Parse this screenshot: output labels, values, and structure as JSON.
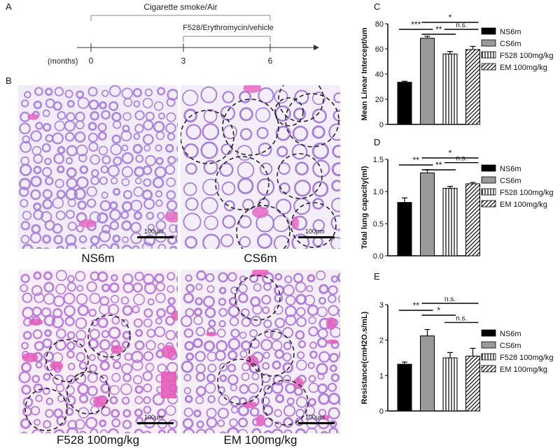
{
  "panel_labels": {
    "a": "A",
    "b": "B",
    "c": "C",
    "d": "D",
    "e": "E"
  },
  "timeline": {
    "bracket1_label": "Cigarette smoke/Air",
    "bracket2_label": "F528/Erythromycin/vehicle",
    "axis_label": "(months)",
    "ticks": [
      "0",
      "3",
      "6"
    ]
  },
  "micrographs": [
    {
      "caption": "NS6m",
      "scale": "100μm",
      "base_color": "#f1ecf8",
      "stain_color": "#a77ed6",
      "blob_color": "#e668c2"
    },
    {
      "caption": "CS6m",
      "scale": "100μm",
      "base_color": "#f3eef9",
      "stain_color": "#9e72d3",
      "blob_color": "#e46ac4"
    },
    {
      "caption": "F528 100mg/kg",
      "scale": "100μm",
      "base_color": "#f7eef8",
      "stain_color": "#b576d6",
      "blob_color": "#e45ab8"
    },
    {
      "caption": "EM 100mg/kg",
      "scale": "100μm",
      "base_color": "#f5eef8",
      "stain_color": "#aa74d6",
      "blob_color": "#e35fbe"
    }
  ],
  "chart_data": [
    {
      "type": "bar",
      "categories": [
        "NS6m",
        "CS6m",
        "F528 100mg/kg",
        "EM 100mg/kg"
      ],
      "values": [
        33.5,
        68.5,
        56,
        59.5
      ],
      "errors": [
        0.8,
        1.5,
        2,
        2.5
      ],
      "ylabel": "Mean Linear Intercept/um",
      "ylim": [
        0,
        80
      ],
      "yticks": [
        0,
        20,
        40,
        60,
        80
      ],
      "legend": [
        "NS6m",
        "CS6m",
        "F528 100mg/kg",
        "EM 100mg/kg"
      ],
      "legend_position": "right",
      "significance": [
        {
          "from": 0,
          "to": 1,
          "label": "***"
        },
        {
          "from": 1,
          "to": 3,
          "label": "*"
        },
        {
          "from": 1,
          "to": 2,
          "label": "**"
        },
        {
          "from": 2,
          "to": 3,
          "label": "n.s."
        }
      ]
    },
    {
      "type": "bar",
      "categories": [
        "NS6m",
        "CS6m",
        "F528 100mg/kg",
        "EM 100mg/kg"
      ],
      "values": [
        0.83,
        1.29,
        1.05,
        1.12
      ],
      "errors": [
        0.07,
        0.05,
        0.03,
        0.02
      ],
      "ylabel": "Total lung capacity(ml)",
      "ylim": [
        0,
        1.5
      ],
      "yticks": [
        0.0,
        0.5,
        1.0,
        1.5
      ],
      "legend": [
        "NS6m",
        "CS6m",
        "F528 100mg/kg",
        "EM 100mg/kg"
      ],
      "legend_position": "right",
      "significance": [
        {
          "from": 0,
          "to": 1,
          "label": "**"
        },
        {
          "from": 1,
          "to": 3,
          "label": "*"
        },
        {
          "from": 1,
          "to": 2,
          "label": "**"
        },
        {
          "from": 2,
          "to": 3,
          "label": "n.s."
        }
      ]
    },
    {
      "type": "bar",
      "categories": [
        "NS6m",
        "CS6m",
        "F528 100mg/kg",
        "EM 100mg/kg"
      ],
      "values": [
        1.32,
        2.12,
        1.5,
        1.55
      ],
      "errors": [
        0.06,
        0.18,
        0.15,
        0.22
      ],
      "ylabel": "Resistance(cmH2O.s/mL)",
      "ylim": [
        0,
        3
      ],
      "yticks": [
        0,
        1,
        2,
        3
      ],
      "legend": [
        "NS6m",
        "CS6m",
        "F528 100mg/kg",
        "EM 100mg/kg"
      ],
      "legend_position": "right",
      "significance": [
        {
          "from": 0,
          "to": 1,
          "label": "**"
        },
        {
          "from": 1,
          "to": 3,
          "label": "n.s."
        },
        {
          "from": 1,
          "to": 2,
          "label": "*"
        },
        {
          "from": 2,
          "to": 3,
          "label": "n.s."
        }
      ]
    }
  ]
}
